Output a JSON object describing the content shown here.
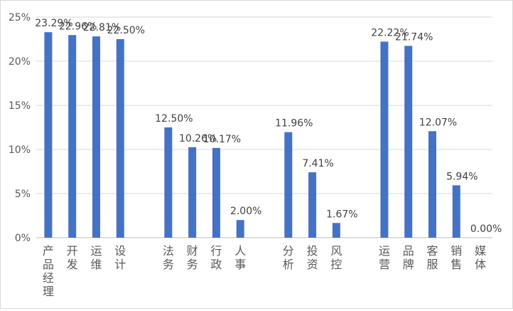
{
  "chart_data": {
    "type": "bar",
    "title": "",
    "xlabel": "",
    "ylabel": "",
    "ylim": [
      0,
      25
    ],
    "yticks": [
      "0%",
      "5%",
      "10%",
      "15%",
      "20%",
      "25%"
    ],
    "grid": true,
    "legend": "none",
    "bar_color": "#4472C4",
    "categories": [
      "产品经理",
      "开发",
      "运维",
      "设计",
      "法务",
      "财务",
      "行政",
      "人事",
      "分析",
      "投资",
      "风控",
      "运营",
      "品牌",
      "客服",
      "销售",
      "媒体"
    ],
    "values": [
      23.29,
      22.96,
      22.81,
      22.5,
      12.5,
      10.26,
      10.17,
      2.0,
      11.96,
      7.41,
      1.67,
      22.22,
      21.74,
      12.07,
      5.94,
      0.0
    ],
    "data_labels": [
      "23.29%",
      "22.96%",
      "22.81%",
      "22.50%",
      "12.50%",
      "10.26%",
      "10.17%",
      "2.00%",
      "11.96%",
      "7.41%",
      "1.67%",
      "22.22%",
      "21.74%",
      "12.07%",
      "5.94%",
      "0.00%"
    ],
    "groups": [
      [
        0,
        1,
        2,
        3
      ],
      [
        4,
        5,
        6,
        7
      ],
      [
        8,
        9,
        10
      ],
      [
        11,
        12,
        13,
        14,
        15
      ]
    ]
  }
}
